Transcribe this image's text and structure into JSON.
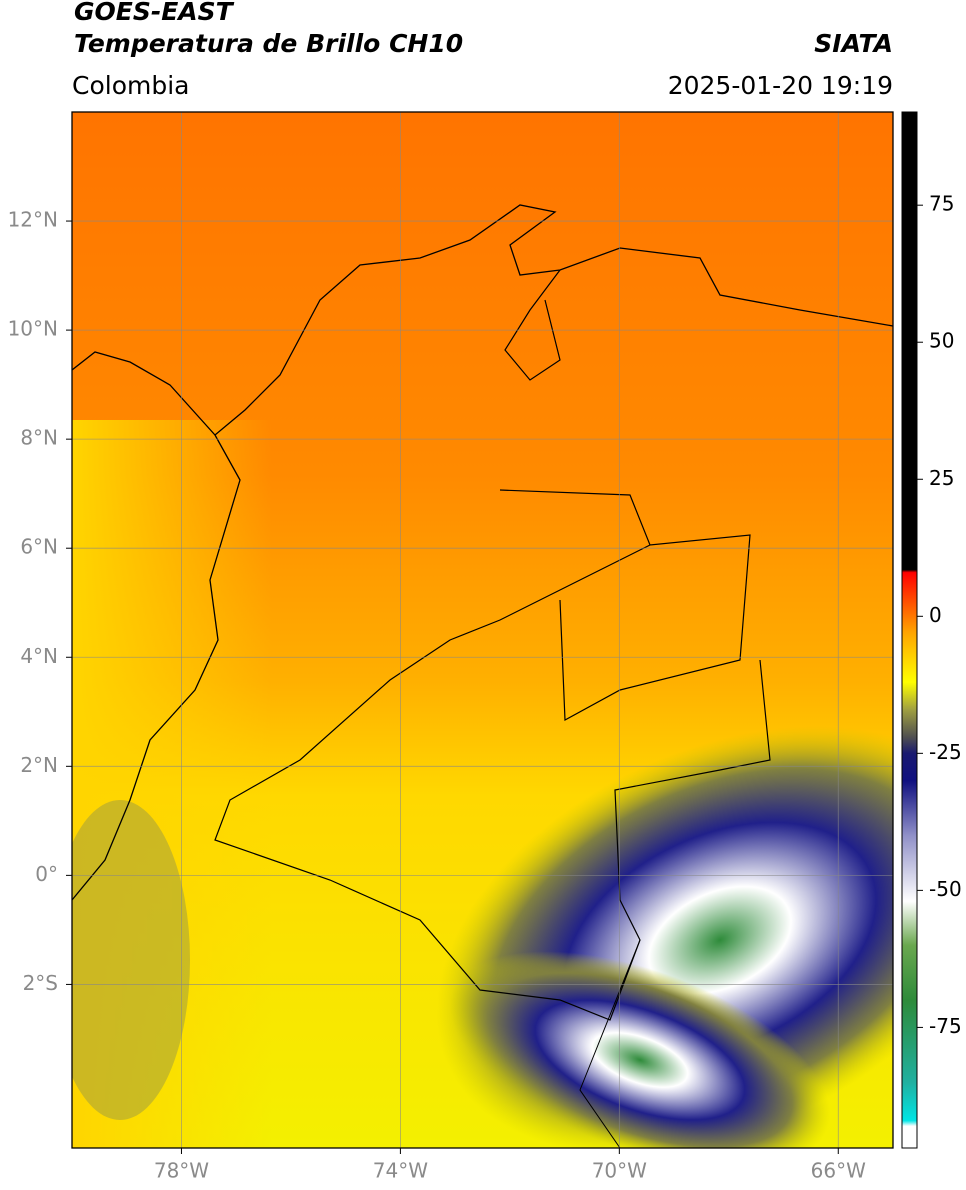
{
  "header": {
    "title": "GOES-EAST",
    "subtitle": "Temperatura de Brillo CH10",
    "region": "Colombia",
    "source": "SIATA",
    "datetime": "2025-01-20 19:19"
  },
  "map": {
    "xlim": [
      -80,
      -65
    ],
    "ylim": [
      -5,
      14
    ],
    "xticks": [
      {
        "value": -78,
        "label": "78°W"
      },
      {
        "value": -74,
        "label": "74°W"
      },
      {
        "value": -70,
        "label": "70°W"
      },
      {
        "value": -66,
        "label": "66°W"
      }
    ],
    "yticks": [
      {
        "value": 12,
        "label": "12°N"
      },
      {
        "value": 10,
        "label": "10°N"
      },
      {
        "value": 8,
        "label": "8°N"
      },
      {
        "value": 6,
        "label": "6°N"
      },
      {
        "value": 4,
        "label": "4°N"
      },
      {
        "value": 2,
        "label": "2°N"
      },
      {
        "value": 0,
        "label": "0°"
      },
      {
        "value": -2,
        "label": "2°S"
      }
    ],
    "grid": true
  },
  "colorbar": {
    "lim": [
      -97,
      92
    ],
    "ticks": [
      75,
      50,
      25,
      0,
      -25,
      -50,
      -75
    ],
    "stops": [
      [
        -97,
        "#ffffff"
      ],
      [
        -93,
        "#ffffff"
      ],
      [
        -92,
        "#00e5e5"
      ],
      [
        -85,
        "#20b0a0"
      ],
      [
        -70,
        "#2e8b3a"
      ],
      [
        -60,
        "#6aa84f"
      ],
      [
        -52,
        "#ffffff"
      ],
      [
        -40,
        "#9090c8"
      ],
      [
        -30,
        "#101080"
      ],
      [
        -25,
        "#1a1a70"
      ],
      [
        -22,
        "#505050"
      ],
      [
        -17,
        "#a0a040"
      ],
      [
        -12,
        "#ffff00"
      ],
      [
        -3,
        "#ffa500"
      ],
      [
        8,
        "#ff0000"
      ],
      [
        8.5,
        "#000000"
      ],
      [
        92,
        "#000000"
      ]
    ]
  }
}
